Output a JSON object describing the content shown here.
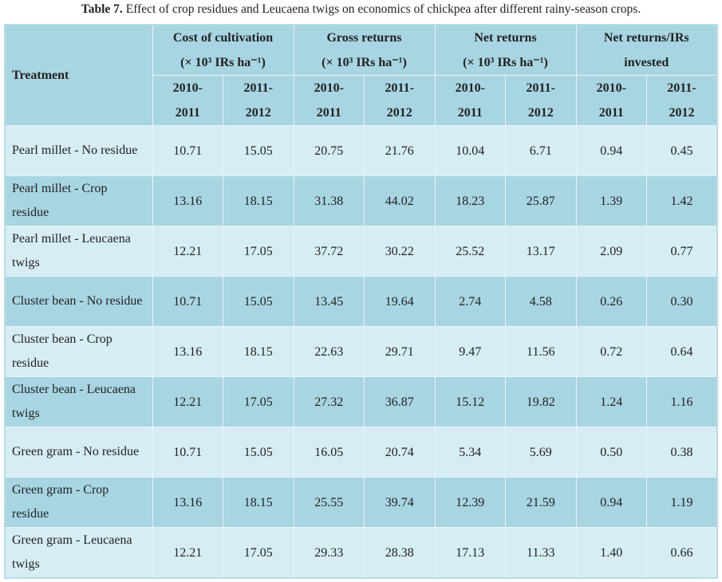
{
  "caption": {
    "label": "Table 7.",
    "text": "Effect of crop residues and Leucaena twigs on economics of chickpea after different rainy-season crops."
  },
  "table": {
    "header": {
      "treatment": "Treatment",
      "groups": [
        {
          "title": "Cost of cultivation",
          "unit": "(× 10³ IRs ha⁻¹)"
        },
        {
          "title": "Gross returns",
          "unit": "(× 10³ IRs ha⁻¹)"
        },
        {
          "title": "Net returns",
          "unit": "(× 10³ IRs ha⁻¹)"
        },
        {
          "title": "Net returns/IRs",
          "unit": "invested"
        }
      ],
      "years": [
        [
          "2010-",
          "2011"
        ],
        [
          "2011-",
          "2012"
        ]
      ]
    },
    "rows": [
      [
        "Pearl millet - No residue",
        "10.71",
        "15.05",
        "20.75",
        "21.76",
        "10.04",
        "6.71",
        "0.94",
        "0.45"
      ],
      [
        "Pearl millet - Crop residue",
        "13.16",
        "18.15",
        "31.38",
        "44.02",
        "18.23",
        "25.87",
        "1.39",
        "1.42"
      ],
      [
        "Pearl millet - Leucaena twigs",
        "12.21",
        "17.05",
        "37.72",
        "30.22",
        "25.52",
        "13.17",
        "2.09",
        "0.77"
      ],
      [
        "Cluster bean - No residue",
        "10.71",
        "15.05",
        "13.45",
        "19.64",
        "2.74",
        "4.58",
        "0.26",
        "0.30"
      ],
      [
        "Cluster bean - Crop residue",
        "13.16",
        "18.15",
        "22.63",
        "29.71",
        "9.47",
        "11.56",
        "0.72",
        "0.64"
      ],
      [
        "Cluster bean - Leucaena twigs",
        "12.21",
        "17.05",
        "27.32",
        "36.87",
        "15.12",
        "19.82",
        "1.24",
        "1.16"
      ],
      [
        "Green gram - No residue",
        "10.71",
        "15.05",
        "16.05",
        "20.74",
        "5.34",
        "5.69",
        "0.50",
        "0.38"
      ],
      [
        "Green gram - Crop residue",
        "13.16",
        "18.15",
        "25.55",
        "39.74",
        "12.39",
        "21.59",
        "0.94",
        "1.19"
      ],
      [
        "Green gram - Leucaena twigs",
        "12.21",
        "17.05",
        "29.33",
        "28.38",
        "17.13",
        "11.33",
        "1.40",
        "0.66"
      ]
    ]
  }
}
